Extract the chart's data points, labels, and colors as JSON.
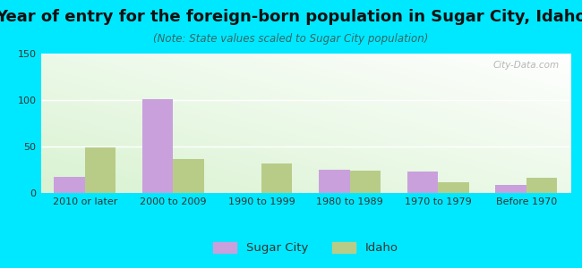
{
  "title": "Year of entry for the foreign-born population in Sugar City, Idaho",
  "subtitle": "(Note: State values scaled to Sugar City population)",
  "categories": [
    "2010 or later",
    "2000 to 2009",
    "1990 to 1999",
    "1980 to 1989",
    "1970 to 1979",
    "Before 1970"
  ],
  "sugar_city": [
    17,
    101,
    0,
    25,
    23,
    9
  ],
  "idaho": [
    49,
    37,
    32,
    24,
    12,
    16
  ],
  "sugar_city_color": "#c9a0dc",
  "idaho_color": "#b8cc88",
  "ylim": [
    0,
    150
  ],
  "yticks": [
    0,
    50,
    100,
    150
  ],
  "background_outer": "#00e8ff",
  "bar_width": 0.35,
  "title_fontsize": 13,
  "subtitle_fontsize": 8.5,
  "tick_fontsize": 8,
  "legend_fontsize": 9.5,
  "watermark": "City-Data.com"
}
